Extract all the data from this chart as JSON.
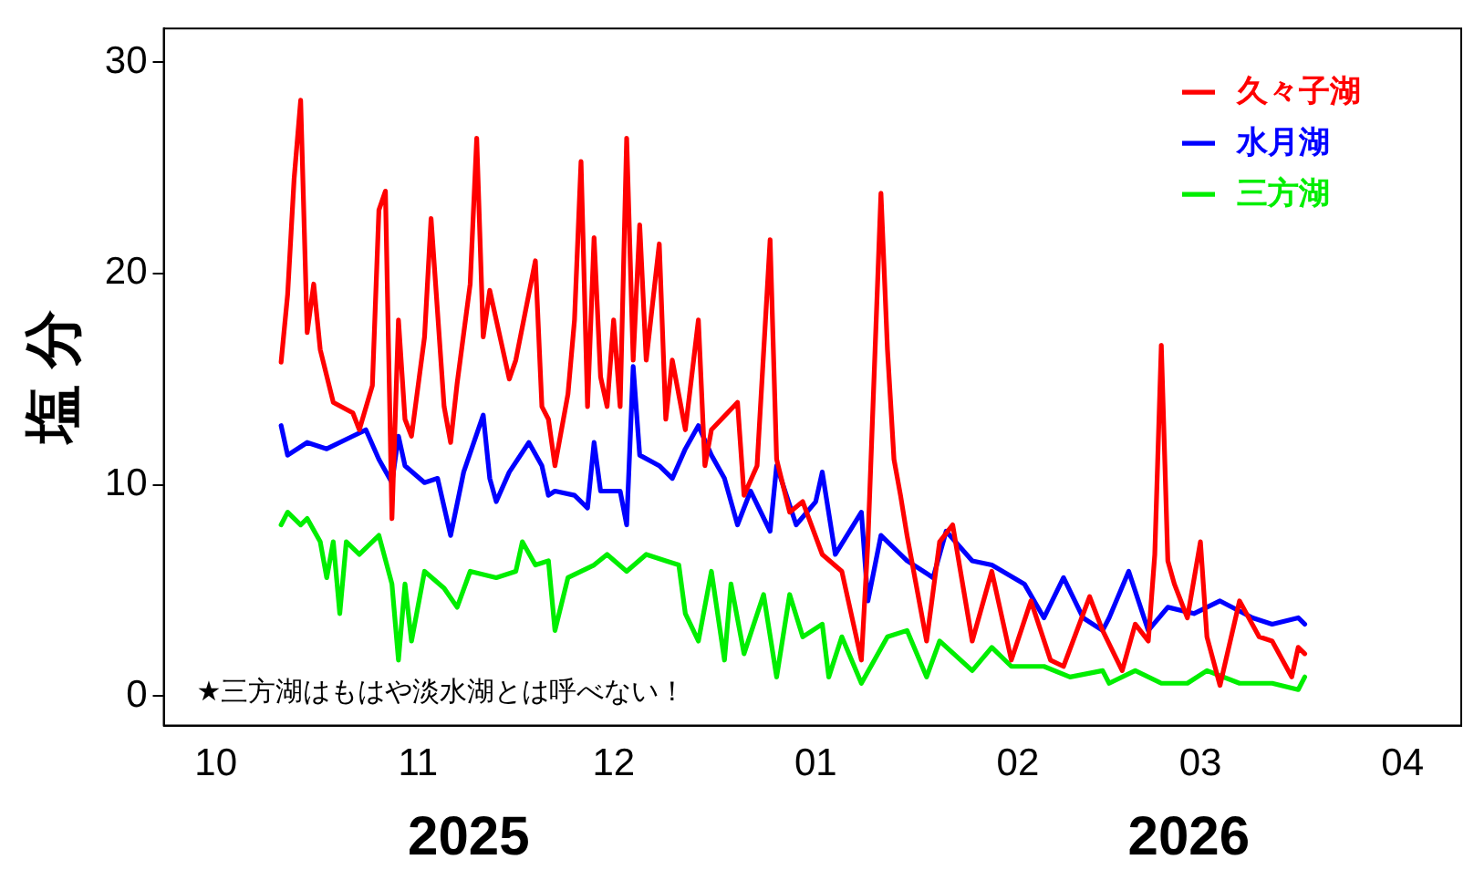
{
  "chart_data": {
    "type": "line",
    "ylabel": "塩 分",
    "xlim": [
      "2025-09-23",
      "2026-04-10"
    ],
    "ylim": [
      -1.4,
      31.6
    ],
    "xticks": [
      {
        "value": "2025-10-01",
        "label": "10"
      },
      {
        "value": "2025-11-01",
        "label": "11"
      },
      {
        "value": "2025-12-01",
        "label": "12"
      },
      {
        "value": "2026-01-01",
        "label": "01"
      },
      {
        "value": "2026-02-01",
        "label": "02"
      },
      {
        "value": "2026-03-01",
        "label": "03"
      },
      {
        "value": "2026-04-01",
        "label": "04"
      }
    ],
    "yticks": [
      0,
      10,
      20,
      30
    ],
    "grid": false,
    "legend": "top right",
    "marker": "none",
    "line_style": "solid",
    "annotations": [
      "★三方湖はもはや淡水湖とは呼べない！",
      "2025",
      "2026"
    ],
    "series": [
      {
        "name": "久々子湖",
        "color": "#ff0000",
        "x": [
          "2025-10-11",
          "2025-10-12",
          "2025-10-13",
          "2025-10-14",
          "2025-10-15",
          "2025-10-16",
          "2025-10-17",
          "2025-10-19",
          "2025-10-22",
          "2025-10-23",
          "2025-10-25",
          "2025-10-26",
          "2025-10-27",
          "2025-10-28",
          "2025-10-29",
          "2025-10-30",
          "2025-10-31",
          "2025-11-02",
          "2025-11-03",
          "2025-11-05",
          "2025-11-06",
          "2025-11-07",
          "2025-11-09",
          "2025-11-10",
          "2025-11-11",
          "2025-11-12",
          "2025-11-14",
          "2025-11-15",
          "2025-11-16",
          "2025-11-19",
          "2025-11-20",
          "2025-11-21",
          "2025-11-22",
          "2025-11-24",
          "2025-11-25",
          "2025-11-26",
          "2025-11-27",
          "2025-11-28",
          "2025-11-29",
          "2025-11-30",
          "2025-12-01",
          "2025-12-02",
          "2025-12-03",
          "2025-12-04",
          "2025-12-05",
          "2025-12-06",
          "2025-12-08",
          "2025-12-09",
          "2025-12-10",
          "2025-12-12",
          "2025-12-14",
          "2025-12-15",
          "2025-12-16",
          "2025-12-20",
          "2025-12-21",
          "2025-12-23",
          "2025-12-25",
          "2025-12-26",
          "2025-12-28",
          "2025-12-30",
          "2026-01-02",
          "2026-01-05",
          "2026-01-08",
          "2026-01-09",
          "2026-01-11",
          "2026-01-12",
          "2026-01-13",
          "2026-01-14",
          "2026-01-15",
          "2026-01-18",
          "2026-01-20",
          "2026-01-22",
          "2026-01-25",
          "2026-01-28",
          "2026-01-31",
          "2026-02-03",
          "2026-02-06",
          "2026-02-08",
          "2026-02-12",
          "2026-02-14",
          "2026-02-17",
          "2026-02-19",
          "2026-02-21",
          "2026-02-22",
          "2026-02-23",
          "2026-02-24",
          "2026-02-25",
          "2026-02-27",
          "2026-03-01",
          "2026-03-02",
          "2026-03-04",
          "2026-03-07",
          "2026-03-10",
          "2026-03-12",
          "2026-03-15",
          "2026-03-16",
          "2026-03-17"
        ],
        "values": [
          15.8,
          19,
          24.5,
          28.2,
          17.2,
          19.5,
          16.4,
          13.9,
          13.4,
          12.6,
          14.7,
          23,
          23.9,
          8.4,
          17.8,
          13.1,
          12.3,
          17,
          22.6,
          13.7,
          12,
          14.8,
          19.5,
          26.4,
          17,
          19.2,
          16.4,
          15,
          15.9,
          20.6,
          13.7,
          13.1,
          10.9,
          14.3,
          17.8,
          25.3,
          13.7,
          21.7,
          15.1,
          13.7,
          17.8,
          13.7,
          26.4,
          15.9,
          22.3,
          15.9,
          21.4,
          13.1,
          15.9,
          12.6,
          17.8,
          10.9,
          12.6,
          13.9,
          9.5,
          10.9,
          21.6,
          11.2,
          8.7,
          9.2,
          6.7,
          5.9,
          1.7,
          7.3,
          23.8,
          16.4,
          11.2,
          9.5,
          7.6,
          2.6,
          7.3,
          8.1,
          2.6,
          5.9,
          1.7,
          4.5,
          1.7,
          1.4,
          4.7,
          3.1,
          1.2,
          3.4,
          2.6,
          6.7,
          16.6,
          6.4,
          5.3,
          3.7,
          7.3,
          2.8,
          0.5,
          4.5,
          2.8,
          2.6,
          0.9,
          2.3,
          2
        ]
      },
      {
        "name": "水月湖",
        "color": "#0000ff",
        "x": [
          "2025-10-11",
          "2025-10-12",
          "2025-10-15",
          "2025-10-18",
          "2025-10-22",
          "2025-10-24",
          "2025-10-26",
          "2025-10-28",
          "2025-10-29",
          "2025-10-30",
          "2025-11-02",
          "2025-11-04",
          "2025-11-06",
          "2025-11-08",
          "2025-11-11",
          "2025-11-12",
          "2025-11-13",
          "2025-11-15",
          "2025-11-18",
          "2025-11-20",
          "2025-11-21",
          "2025-11-22",
          "2025-11-25",
          "2025-11-27",
          "2025-11-28",
          "2025-11-29",
          "2025-12-02",
          "2025-12-03",
          "2025-12-04",
          "2025-12-05",
          "2025-12-08",
          "2025-12-10",
          "2025-12-12",
          "2025-12-14",
          "2025-12-16",
          "2025-12-18",
          "2025-12-20",
          "2025-12-22",
          "2025-12-25",
          "2025-12-26",
          "2025-12-29",
          "2026-01-01",
          "2026-01-02",
          "2026-01-04",
          "2026-01-08",
          "2026-01-09",
          "2026-01-11",
          "2026-01-15",
          "2026-01-19",
          "2026-01-21",
          "2026-01-25",
          "2026-01-28",
          "2026-02-02",
          "2026-02-05",
          "2026-02-08",
          "2026-02-11",
          "2026-02-14",
          "2026-02-15",
          "2026-02-18",
          "2026-02-21",
          "2026-02-24",
          "2026-02-28",
          "2026-03-04",
          "2026-03-09",
          "2026-03-12",
          "2026-03-16",
          "2026-03-17"
        ],
        "values": [
          12.8,
          11.4,
          12,
          11.7,
          12.3,
          12.6,
          11.2,
          10.1,
          12.3,
          10.9,
          10.1,
          10.3,
          7.6,
          10.6,
          13.3,
          10.3,
          9.2,
          10.6,
          12,
          10.9,
          9.5,
          9.7,
          9.5,
          8.9,
          12,
          9.7,
          9.7,
          8.1,
          15.6,
          11.4,
          10.9,
          10.3,
          11.7,
          12.8,
          11.4,
          10.3,
          8.1,
          9.7,
          7.8,
          10.9,
          8.1,
          9.2,
          10.6,
          6.7,
          8.7,
          4.5,
          7.6,
          6.4,
          5.6,
          7.8,
          6.4,
          6.2,
          5.3,
          3.7,
          5.6,
          3.7,
          3.1,
          3.7,
          5.9,
          3.1,
          4.2,
          3.9,
          4.5,
          3.7,
          3.4,
          3.7,
          3.4
        ]
      },
      {
        "name": "三方湖",
        "color": "#00ee00",
        "x": [
          "2025-10-11",
          "2025-10-12",
          "2025-10-14",
          "2025-10-15",
          "2025-10-17",
          "2025-10-18",
          "2025-10-19",
          "2025-10-20",
          "2025-10-21",
          "2025-10-23",
          "2025-10-26",
          "2025-10-28",
          "2025-10-29",
          "2025-10-30",
          "2025-10-31",
          "2025-11-02",
          "2025-11-05",
          "2025-11-07",
          "2025-11-09",
          "2025-11-13",
          "2025-11-16",
          "2025-11-17",
          "2025-11-19",
          "2025-11-21",
          "2025-11-22",
          "2025-11-24",
          "2025-11-28",
          "2025-11-30",
          "2025-12-03",
          "2025-12-06",
          "2025-12-09",
          "2025-12-11",
          "2025-12-12",
          "2025-12-14",
          "2025-12-16",
          "2025-12-18",
          "2025-12-19",
          "2025-12-21",
          "2025-12-24",
          "2025-12-26",
          "2025-12-28",
          "2025-12-30",
          "2026-01-02",
          "2026-01-03",
          "2026-01-05",
          "2026-01-08",
          "2026-01-12",
          "2026-01-15",
          "2026-01-18",
          "2026-01-20",
          "2026-01-25",
          "2026-01-28",
          "2026-01-31",
          "2026-02-05",
          "2026-02-09",
          "2026-02-14",
          "2026-02-15",
          "2026-02-19",
          "2026-02-23",
          "2026-02-27",
          "2026-03-02",
          "2026-03-07",
          "2026-03-12",
          "2026-03-16",
          "2026-03-17"
        ],
        "values": [
          8.1,
          8.7,
          8.1,
          8.4,
          7.3,
          5.6,
          7.3,
          3.9,
          7.3,
          6.7,
          7.6,
          5.3,
          1.7,
          5.3,
          2.6,
          5.9,
          5.1,
          4.2,
          5.9,
          5.6,
          5.9,
          7.3,
          6.2,
          6.4,
          3.1,
          5.6,
          6.2,
          6.7,
          5.9,
          6.7,
          6.4,
          6.2,
          3.9,
          2.6,
          5.9,
          1.7,
          5.3,
          2,
          4.8,
          0.9,
          4.8,
          2.8,
          3.4,
          0.9,
          2.8,
          0.6,
          2.8,
          3.1,
          0.9,
          2.6,
          1.2,
          2.3,
          1.4,
          1.4,
          0.9,
          1.2,
          0.6,
          1.2,
          0.6,
          0.6,
          1.2,
          0.6,
          0.6,
          0.3,
          0.9
        ]
      }
    ]
  }
}
